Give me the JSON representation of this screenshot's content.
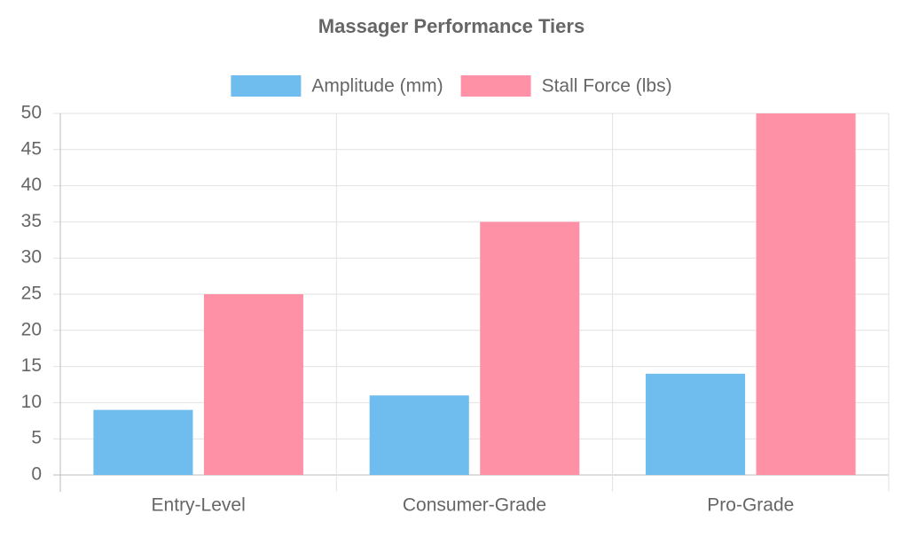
{
  "chart_data": {
    "type": "bar",
    "title": "Massager Performance Tiers",
    "categories": [
      "Entry-Level",
      "Consumer-Grade",
      "Pro-Grade"
    ],
    "series": [
      {
        "name": "Amplitude (mm)",
        "color": "#6fbcee",
        "values": [
          9,
          11,
          14
        ]
      },
      {
        "name": "Stall Force (lbs)",
        "color": "#ff91a7",
        "values": [
          25,
          35,
          50
        ]
      }
    ],
    "ylim": [
      0,
      50
    ],
    "yticks": [
      0,
      5,
      10,
      15,
      20,
      25,
      30,
      35,
      40,
      45,
      50
    ],
    "grid": true,
    "legend": "top"
  }
}
